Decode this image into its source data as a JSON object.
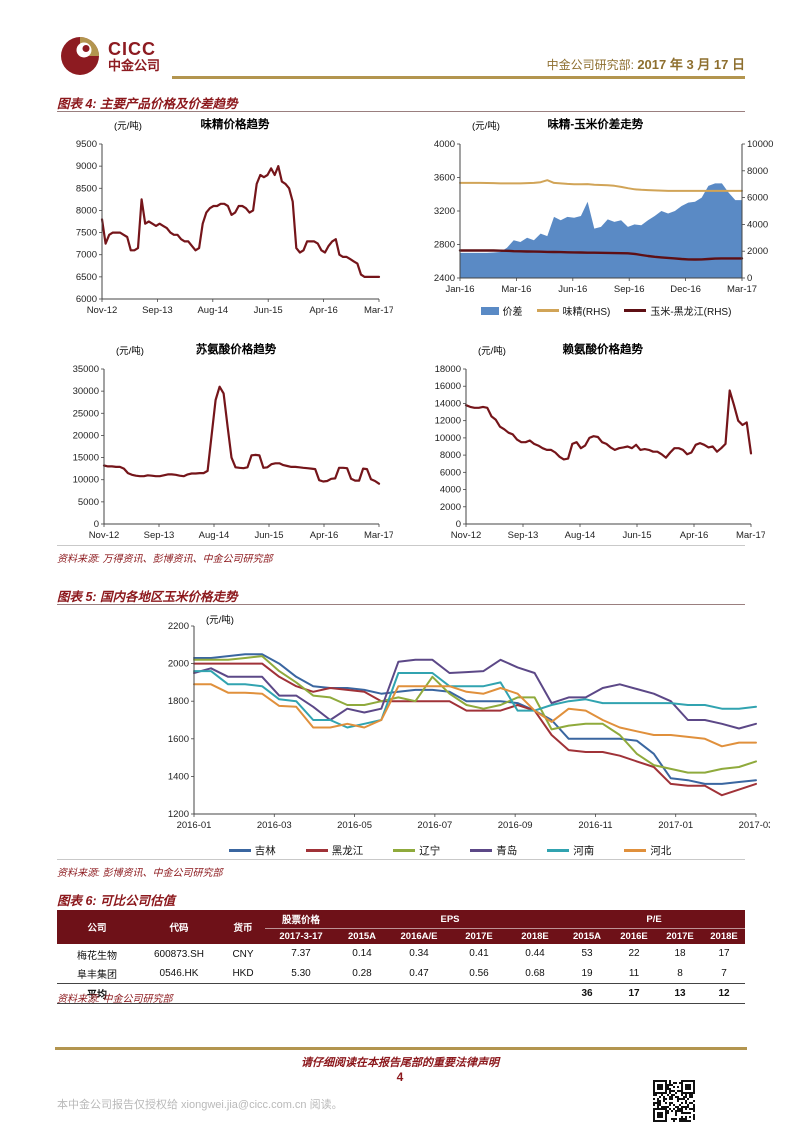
{
  "header": {
    "logo_en": "CICC",
    "logo_cn": "中金公司",
    "dept": "中金公司研究部:",
    "date": "2017 年 3 月 17 日"
  },
  "figure4": {
    "title": "图表 4: 主要产品价格及价差趋势",
    "source": "资料来源: 万得资讯、彭博资讯、中金公司研究部"
  },
  "figure5": {
    "title": "图表 5: 国内各地区玉米价格走势",
    "source": "资料来源: 彭博资讯、中金公司研究部"
  },
  "figure6": {
    "title": "图表 6: 可比公司估值",
    "source": "资料来源: 中金公司研究部"
  },
  "footer": {
    "disclaimer": "请仔细阅读在本报告尾部的重要法律声明",
    "page_number": "4",
    "authorization": "本中金公司报告仅授权给 xiongwei.jia@cicc.com.cn 阅读。"
  },
  "colors": {
    "brand_maroon": "#8d1b21",
    "brand_gold": "#b3954f",
    "figure_title_red": "#8c181c",
    "header_text_gold": "#8e6f2f",
    "table_header_bg": "#6e1118",
    "gray_note": "#b9b9b9"
  },
  "chart_data": [
    {
      "id": "msg-price-trend",
      "type": "line",
      "title": "味精价格趋势",
      "unit": "(元/吨)",
      "ylim": [
        6000,
        9500
      ],
      "yticks": [
        6000,
        6500,
        7000,
        7500,
        8000,
        8500,
        9000,
        9500
      ],
      "xticklabels": [
        "Nov-12",
        "Sep-13",
        "Aug-14",
        "Jun-15",
        "Apr-16",
        "Mar-17"
      ],
      "legend_position": "none",
      "grid": false,
      "series": [
        {
          "name": "味精价格",
          "type": "line",
          "axis": "left",
          "color": "#75151a",
          "width": 2.2,
          "values": [
            7800,
            7250,
            7450,
            7500,
            7500,
            7500,
            7450,
            7400,
            7100,
            7100,
            7150,
            8250,
            7700,
            7750,
            7700,
            7650,
            7700,
            7650,
            7600,
            7500,
            7450,
            7450,
            7350,
            7300,
            7300,
            7200,
            7100,
            7150,
            7700,
            7950,
            8050,
            8100,
            8100,
            8150,
            8150,
            8100,
            7900,
            7950,
            8100,
            8100,
            8050,
            7950,
            8000,
            8600,
            8800,
            8750,
            8800,
            8950,
            8800,
            9000,
            8650,
            8600,
            8500,
            8200,
            7150,
            7050,
            7100,
            7300,
            7300,
            7300,
            7250,
            7100,
            7050,
            7200,
            7300,
            7350,
            7000,
            6950,
            6950,
            6900,
            6850,
            6800,
            6550,
            6500,
            6500,
            6500,
            6500,
            6500
          ]
        }
      ]
    },
    {
      "id": "msg-corn-spread",
      "type": "area",
      "title": "味精-玉米价差走势",
      "unit": "(元/吨)",
      "ylim": [
        2400,
        4000
      ],
      "yticks": [
        2400,
        2800,
        3200,
        3600,
        4000
      ],
      "ylim2": [
        0,
        10000
      ],
      "yticks2": [
        0,
        2000,
        4000,
        6000,
        8000,
        10000
      ],
      "xticklabels": [
        "Jan-16",
        "Mar-16",
        "Jun-16",
        "Sep-16",
        "Dec-16",
        "Mar-17"
      ],
      "legend_position": "bottom",
      "grid": false,
      "series": [
        {
          "name": "价差",
          "type": "area",
          "axis": "left",
          "color": "#5a8ac5",
          "values": [
            2700,
            2700,
            2700,
            2700,
            2700,
            2705,
            2710,
            2760,
            2850,
            2830,
            2880,
            2850,
            2930,
            2900,
            3130,
            3090,
            3130,
            3120,
            3140,
            3310,
            2990,
            3010,
            3100,
            3070,
            3090,
            3010,
            3040,
            3030,
            3090,
            3140,
            3200,
            3170,
            3200,
            3260,
            3300,
            3310,
            3360,
            3500,
            3530,
            3530,
            3420,
            3330,
            3330
          ]
        },
        {
          "name": "味精(RHS)",
          "type": "line",
          "axis": "right",
          "color": "#d1a457",
          "width": 2,
          "values": [
            7100,
            7100,
            7100,
            7100,
            7090,
            7080,
            7060,
            7060,
            7060,
            7060,
            7080,
            7100,
            7150,
            7300,
            7100,
            7060,
            7020,
            7000,
            6990,
            7010,
            6960,
            6940,
            6920,
            6880,
            6800,
            6700,
            6620,
            6580,
            6560,
            6540,
            6520,
            6500,
            6500,
            6500,
            6500,
            6500,
            6500,
            6500,
            6500,
            6500,
            6500,
            6500,
            6500
          ]
        },
        {
          "name": "玉米-黑龙江(RHS)",
          "type": "line",
          "axis": "right",
          "color": "#5e0f14",
          "width": 2.4,
          "values": [
            2050,
            2050,
            2050,
            2050,
            2050,
            2050,
            2040,
            2030,
            2000,
            1990,
            1980,
            1970,
            1960,
            1950,
            1940,
            1930,
            1920,
            1910,
            1900,
            1890,
            1890,
            1880,
            1870,
            1860,
            1850,
            1840,
            1800,
            1720,
            1640,
            1580,
            1540,
            1500,
            1460,
            1420,
            1390,
            1380,
            1390,
            1420,
            1450,
            1460,
            1460,
            1460,
            1460
          ]
        }
      ]
    },
    {
      "id": "threonine-price-trend",
      "type": "line",
      "title": "苏氨酸价格趋势",
      "unit": "(元/吨)",
      "ylim": [
        0,
        35000
      ],
      "yticks": [
        0,
        5000,
        10000,
        15000,
        20000,
        25000,
        30000,
        35000
      ],
      "xticklabels": [
        "Nov-12",
        "Sep-13",
        "Aug-14",
        "Jun-15",
        "Apr-16",
        "Mar-17"
      ],
      "legend_position": "none",
      "grid": false,
      "series": [
        {
          "name": "苏氨酸价格",
          "type": "line",
          "axis": "left",
          "color": "#75151a",
          "width": 2.2,
          "values": [
            13200,
            13000,
            13000,
            12900,
            12900,
            12500,
            11500,
            11100,
            10900,
            10800,
            10800,
            11000,
            10900,
            10800,
            10800,
            11000,
            11200,
            11200,
            11100,
            10900,
            10800,
            11200,
            11400,
            11400,
            11500,
            11500,
            12000,
            20000,
            28000,
            31000,
            29500,
            22000,
            15000,
            12800,
            12700,
            12600,
            12800,
            15500,
            15600,
            15500,
            12700,
            12800,
            13500,
            13700,
            13700,
            13300,
            13100,
            12900,
            12900,
            12800,
            12700,
            12600,
            12500,
            12400,
            9900,
            9600,
            9700,
            10200,
            10300,
            12700,
            12700,
            12600,
            10200,
            9800,
            9800,
            12500,
            12400,
            10100,
            9700,
            9100
          ]
        }
      ]
    },
    {
      "id": "lysine-price-trend",
      "type": "line",
      "title": "赖氨酸价格趋势",
      "unit": "(元/吨)",
      "ylim": [
        0,
        18000
      ],
      "yticks": [
        0,
        2000,
        4000,
        6000,
        8000,
        10000,
        12000,
        14000,
        16000,
        18000
      ],
      "xticklabels": [
        "Nov-12",
        "Sep-13",
        "Aug-14",
        "Jun-15",
        "Apr-16",
        "Mar-17"
      ],
      "legend_position": "none",
      "grid": false,
      "series": [
        {
          "name": "赖氨酸价格",
          "type": "line",
          "axis": "left",
          "color": "#75151a",
          "width": 2.2,
          "values": [
            13800,
            13600,
            13500,
            13500,
            13600,
            13500,
            12500,
            12100,
            11300,
            11000,
            10600,
            10400,
            9800,
            9500,
            9500,
            9700,
            9300,
            9100,
            8800,
            8600,
            8600,
            8300,
            7800,
            7500,
            7600,
            9300,
            9500,
            8800,
            9100,
            10000,
            10200,
            10100,
            9500,
            9300,
            8900,
            8600,
            8800,
            8900,
            9000,
            8800,
            9200,
            8600,
            8700,
            8600,
            8400,
            8400,
            8100,
            7700,
            8300,
            8800,
            8800,
            8600,
            8100,
            8300,
            9200,
            9400,
            9200,
            8900,
            9000,
            8400,
            8800,
            9300,
            15500,
            13800,
            12000,
            11500,
            11800,
            8200
          ]
        }
      ]
    },
    {
      "id": "regional-corn-price",
      "type": "line",
      "title": "",
      "unit": "(元/吨)",
      "ylim": [
        1200,
        2200
      ],
      "yticks": [
        1200,
        1400,
        1600,
        1800,
        2000,
        2200
      ],
      "xticklabels": [
        "2016-01",
        "2016-03",
        "2016-05",
        "2016-07",
        "2016-09",
        "2016-11",
        "2017-01",
        "2017-03"
      ],
      "legend_position": "bottom",
      "grid": false,
      "series": [
        {
          "name": "吉林",
          "type": "line",
          "axis": "left",
          "color": "#3a66a0",
          "width": 2,
          "values": [
            2030,
            2030,
            2040,
            2050,
            2050,
            2000,
            1930,
            1880,
            1870,
            1870,
            1860,
            1840,
            1850,
            1860,
            1860,
            1850,
            1800,
            1800,
            1800,
            1790,
            1750,
            1700,
            1600,
            1600,
            1600,
            1600,
            1590,
            1520,
            1390,
            1380,
            1360,
            1360,
            1370,
            1380
          ]
        },
        {
          "name": "黑龙江",
          "type": "line",
          "axis": "left",
          "color": "#a03238",
          "width": 2,
          "values": [
            2000,
            2000,
            2000,
            2000,
            2000,
            1930,
            1880,
            1850,
            1870,
            1860,
            1850,
            1800,
            1800,
            1800,
            1800,
            1800,
            1750,
            1750,
            1750,
            1780,
            1750,
            1620,
            1540,
            1530,
            1530,
            1510,
            1480,
            1450,
            1360,
            1350,
            1350,
            1300,
            1330,
            1360
          ]
        },
        {
          "name": "辽宁",
          "type": "line",
          "axis": "left",
          "color": "#8faa3c",
          "width": 2,
          "values": [
            2020,
            2020,
            2020,
            2030,
            2040,
            1960,
            1900,
            1830,
            1820,
            1780,
            1780,
            1800,
            1820,
            1800,
            1930,
            1840,
            1780,
            1760,
            1780,
            1820,
            1820,
            1650,
            1670,
            1680,
            1680,
            1620,
            1520,
            1460,
            1440,
            1420,
            1420,
            1440,
            1450,
            1480
          ]
        },
        {
          "name": "青岛",
          "type": "line",
          "axis": "left",
          "color": "#5c4887",
          "width": 2,
          "values": [
            1950,
            1975,
            1930,
            1930,
            1930,
            1830,
            1830,
            1770,
            1700,
            1760,
            1740,
            1760,
            2010,
            2020,
            2020,
            1950,
            1955,
            1960,
            2020,
            1980,
            1950,
            1790,
            1820,
            1820,
            1870,
            1890,
            1865,
            1840,
            1800,
            1700,
            1700,
            1680,
            1655,
            1680
          ]
        },
        {
          "name": "河南",
          "type": "line",
          "axis": "left",
          "color": "#31a3b0",
          "width": 2,
          "values": [
            1960,
            1960,
            1890,
            1890,
            1880,
            1810,
            1800,
            1700,
            1700,
            1660,
            1680,
            1700,
            1950,
            1950,
            1950,
            1880,
            1880,
            1880,
            1900,
            1750,
            1750,
            1780,
            1800,
            1810,
            1790,
            1790,
            1790,
            1790,
            1790,
            1780,
            1780,
            1760,
            1760,
            1770
          ]
        },
        {
          "name": "河北",
          "type": "line",
          "axis": "left",
          "color": "#e0903c",
          "width": 2,
          "values": [
            1890,
            1890,
            1845,
            1845,
            1840,
            1775,
            1770,
            1660,
            1660,
            1680,
            1660,
            1700,
            1880,
            1880,
            1880,
            1880,
            1850,
            1840,
            1870,
            1840,
            1750,
            1690,
            1760,
            1750,
            1700,
            1660,
            1640,
            1620,
            1620,
            1610,
            1600,
            1560,
            1580,
            1580
          ]
        }
      ]
    }
  ],
  "table": {
    "col_company": "公司",
    "col_code": "代码",
    "col_currency": "货币",
    "col_price": "股票价格",
    "col_price_date": "2017-3-17",
    "group_eps": "EPS",
    "group_pe": "P/E",
    "eps_cols": [
      "2015A",
      "2016A/E",
      "2017E",
      "2018E"
    ],
    "pe_cols": [
      "2015A",
      "2016E",
      "2017E",
      "2018E"
    ],
    "rows": [
      {
        "company": "梅花生物",
        "code": "600873.SH",
        "currency": "CNY",
        "price": "7.37",
        "eps": [
          "0.14",
          "0.34",
          "0.41",
          "0.44"
        ],
        "pe": [
          "53",
          "22",
          "18",
          "17"
        ]
      },
      {
        "company": "阜丰集团",
        "code": "0546.HK",
        "currency": "HKD",
        "price": "5.30",
        "eps": [
          "0.28",
          "0.47",
          "0.56",
          "0.68"
        ],
        "pe": [
          "19",
          "11",
          "8",
          "7"
        ]
      }
    ],
    "avg_row": {
      "label": "平均",
      "pe": [
        "36",
        "17",
        "13",
        "12"
      ]
    }
  }
}
